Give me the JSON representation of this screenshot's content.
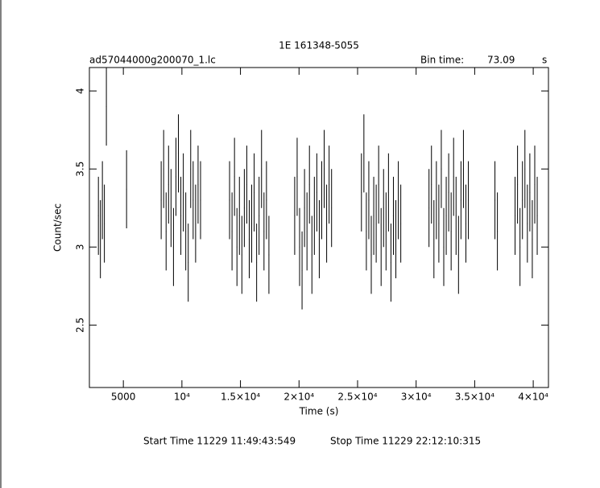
{
  "chart_data": {
    "type": "errorbar",
    "title": "1E 161348-5055",
    "file_label": "ad57044000g200070_1.lc",
    "bin_time_label": "Bin time:",
    "bin_time": 73.09,
    "bin_time_unit": "s",
    "xlabel": "Time (s)",
    "ylabel": "Count/sec",
    "start_time": "Start Time 11229 11:49:43:549",
    "stop_time": "Stop Time 11229 22:12:10:315",
    "xlim": [
      2100,
      41300
    ],
    "xticks": [
      5000,
      {
        "value": 10000,
        "label": "10⁴"
      },
      {
        "value": 15000,
        "label": "1.5×10⁴"
      },
      {
        "value": 20000,
        "label": "2×10⁴"
      },
      {
        "value": 25000,
        "label": "2.5×10⁴"
      },
      {
        "value": 30000,
        "label": "3×10⁴"
      },
      {
        "value": 35000,
        "label": "3.5×10⁴"
      },
      {
        "value": 40000,
        "label": "4×10⁴"
      }
    ],
    "ylim": [
      2.1,
      4.15
    ],
    "yticks": [
      2.5,
      3,
      3.5,
      4
    ],
    "color": "#000000",
    "error": 0.25,
    "x": [
      2870,
      3040,
      3210,
      3380,
      3550,
      5274,
      8230,
      8440,
      8650,
      8860,
      9070,
      9280,
      9490,
      9700,
      9910,
      10120,
      10330,
      10540,
      10750,
      10960,
      11170,
      11380,
      11590,
      14070,
      14280,
      14490,
      14700,
      14910,
      15120,
      15330,
      15540,
      15750,
      15960,
      16170,
      16380,
      16590,
      16800,
      17010,
      17220,
      17430,
      19630,
      19840,
      20050,
      20260,
      20470,
      20680,
      20890,
      21100,
      21310,
      21520,
      21730,
      21940,
      22150,
      22360,
      22570,
      22780,
      25330,
      25540,
      25750,
      25960,
      26170,
      26380,
      26590,
      26800,
      27010,
      27220,
      27430,
      27640,
      27850,
      28060,
      28270,
      28480,
      28690,
      31100,
      31310,
      31520,
      31730,
      31940,
      32150,
      32360,
      32570,
      32780,
      32990,
      33200,
      33410,
      33620,
      33830,
      34040,
      34250,
      34460,
      36730,
      36940,
      38450,
      38660,
      38870,
      39080,
      39290,
      39500,
      39710,
      39920,
      40130,
      40340
    ],
    "values": [
      3.2,
      3.05,
      3.3,
      3.15,
      3.9,
      3.37,
      3.3,
      3.5,
      3.1,
      3.4,
      3.25,
      3.0,
      3.45,
      3.6,
      3.2,
      3.35,
      3.1,
      2.9,
      3.5,
      3.3,
      3.15,
      3.4,
      3.3,
      3.3,
      3.1,
      3.45,
      3.0,
      3.2,
      2.95,
      3.25,
      3.4,
      3.05,
      3.15,
      3.35,
      2.9,
      3.2,
      3.5,
      3.1,
      3.3,
      2.95,
      3.2,
      3.45,
      3.0,
      2.85,
      3.25,
      3.1,
      3.4,
      2.95,
      3.2,
      3.35,
      3.05,
      3.3,
      3.5,
      3.15,
      3.4,
      3.25,
      3.35,
      3.6,
      3.1,
      3.3,
      2.95,
      3.2,
      3.15,
      3.4,
      3.0,
      3.25,
      3.1,
      3.35,
      2.9,
      3.2,
      3.05,
      3.3,
      3.15,
      3.25,
      3.4,
      3.05,
      3.3,
      3.15,
      3.5,
      3.0,
      3.2,
      3.35,
      3.1,
      3.45,
      3.2,
      2.95,
      3.3,
      3.5,
      3.15,
      3.3,
      3.3,
      3.1,
      3.2,
      3.4,
      3.0,
      3.3,
      3.5,
      3.15,
      3.35,
      3.05,
      3.4,
      3.2
    ]
  }
}
